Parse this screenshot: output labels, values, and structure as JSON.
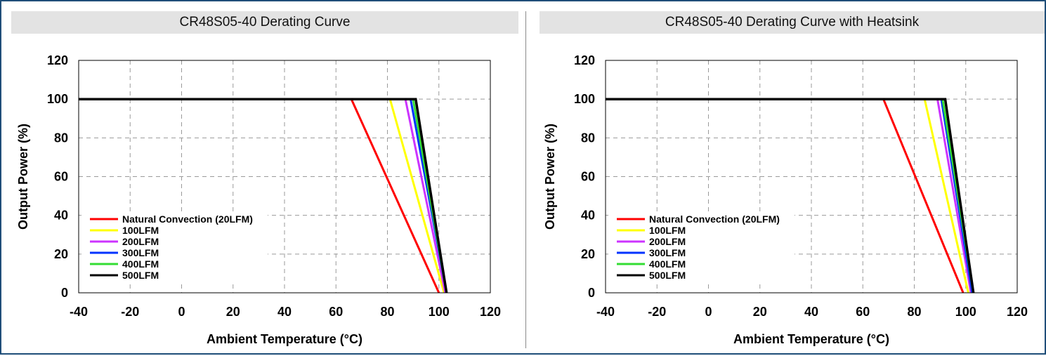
{
  "charts": [
    {
      "title": "CR48S05-40 Derating Curve",
      "xlabel": "Ambient Temperature (°C)",
      "ylabel": "Output Power (%)"
    },
    {
      "title": "CR48S05-40 Derating Curve with Heatsink",
      "xlabel": "Ambient Temperature (°C)",
      "ylabel": "Output Power (%)"
    }
  ],
  "chart_data": [
    {
      "type": "line",
      "title": "CR48S05-40 Derating Curve",
      "xlabel": "Ambient Temperature (°C)",
      "ylabel": "Output Power (%)",
      "xlim": [
        -40,
        120
      ],
      "ylim": [
        0,
        120
      ],
      "xticks": [
        "-40",
        "-20",
        "0",
        "20",
        "40",
        "60",
        "80",
        "100",
        "120"
      ],
      "yticks": [
        "0",
        "20",
        "40",
        "60",
        "80",
        "100",
        "120"
      ],
      "grid": true,
      "legend_position": "bottom-left",
      "series": [
        {
          "name": "Natural Convection (20LFM)",
          "color": "#ff0000",
          "points": [
            [
              -40,
              100
            ],
            [
              66,
              100
            ],
            [
              100,
              0
            ]
          ]
        },
        {
          "name": "100LFM",
          "color": "#ffff00",
          "points": [
            [
              -40,
              100
            ],
            [
              81,
              100
            ],
            [
              102,
              0
            ]
          ]
        },
        {
          "name": "200LFM",
          "color": "#cc33ff",
          "points": [
            [
              -40,
              100
            ],
            [
              87,
              100
            ],
            [
              102.5,
              0
            ]
          ]
        },
        {
          "name": "300LFM",
          "color": "#0033ff",
          "points": [
            [
              -40,
              100
            ],
            [
              89,
              100
            ],
            [
              103,
              0
            ]
          ]
        },
        {
          "name": "400LFM",
          "color": "#33dd33",
          "points": [
            [
              -40,
              100
            ],
            [
              90,
              100
            ],
            [
              103,
              0
            ]
          ]
        },
        {
          "name": "500LFM",
          "color": "#000000",
          "points": [
            [
              -40,
              100
            ],
            [
              91,
              100
            ],
            [
              103,
              0
            ]
          ]
        }
      ]
    },
    {
      "type": "line",
      "title": "CR48S05-40 Derating Curve with Heatsink",
      "xlabel": "Ambient Temperature (°C)",
      "ylabel": "Output Power (%)",
      "xlim": [
        -40,
        120
      ],
      "ylim": [
        0,
        120
      ],
      "xticks": [
        "-40",
        "-20",
        "0",
        "20",
        "40",
        "60",
        "80",
        "100",
        "120"
      ],
      "yticks": [
        "0",
        "20",
        "40",
        "60",
        "80",
        "100",
        "120"
      ],
      "grid": true,
      "legend_position": "bottom-left",
      "series": [
        {
          "name": "Natural Convection (20LFM)",
          "color": "#ff0000",
          "points": [
            [
              -40,
              100
            ],
            [
              68,
              100
            ],
            [
              99,
              0
            ]
          ]
        },
        {
          "name": "100LFM",
          "color": "#ffff00",
          "points": [
            [
              -40,
              100
            ],
            [
              84,
              100
            ],
            [
              101,
              0
            ]
          ]
        },
        {
          "name": "200LFM",
          "color": "#cc33ff",
          "points": [
            [
              -40,
              100
            ],
            [
              89,
              100
            ],
            [
              102,
              0
            ]
          ]
        },
        {
          "name": "300LFM",
          "color": "#0033ff",
          "points": [
            [
              -40,
              100
            ],
            [
              90.5,
              100
            ],
            [
              102.5,
              0
            ]
          ]
        },
        {
          "name": "400LFM",
          "color": "#33dd33",
          "points": [
            [
              -40,
              100
            ],
            [
              91,
              100
            ],
            [
              103,
              0
            ]
          ]
        },
        {
          "name": "500LFM",
          "color": "#000000",
          "points": [
            [
              -40,
              100
            ],
            [
              92,
              100
            ],
            [
              103,
              0
            ]
          ]
        }
      ]
    }
  ]
}
